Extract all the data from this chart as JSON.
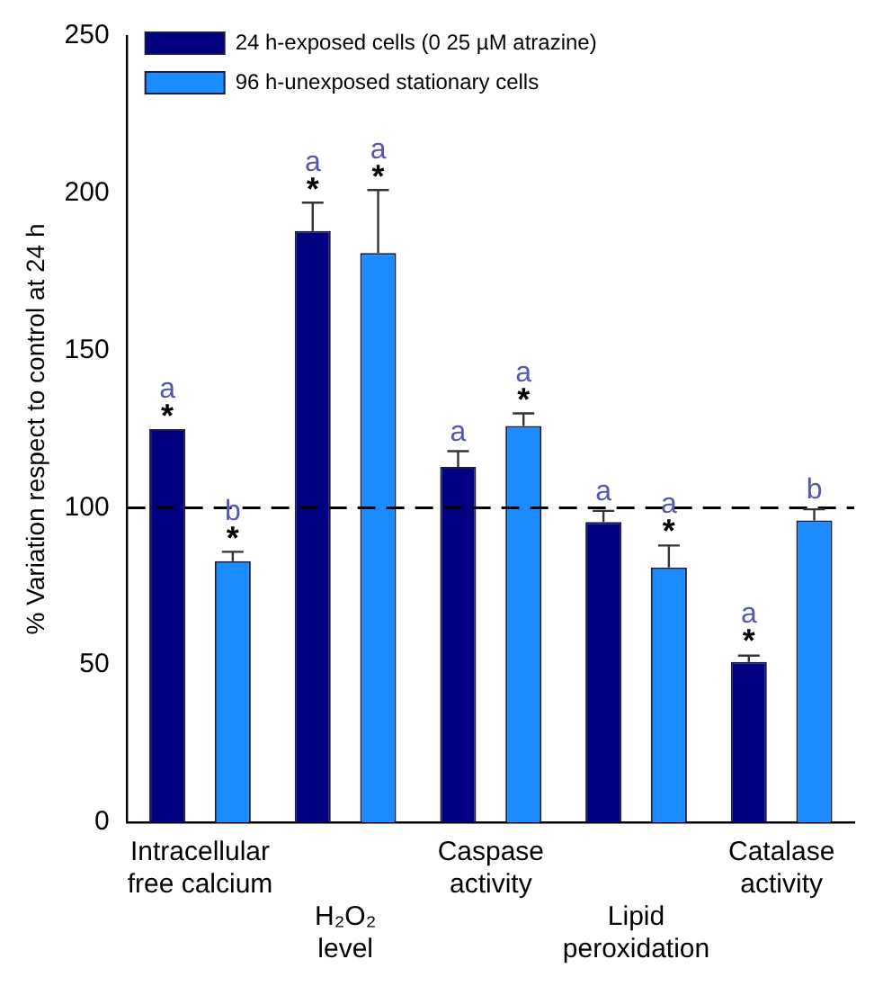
{
  "chart_data": {
    "type": "bar",
    "ylabel": "% Variation respect to control at 24 h",
    "categories": [
      "Intracellular\nfree calcium",
      "H₂O₂\nlevel",
      "Caspase\nactivity",
      "Lipid\nperoxidation",
      "Catalase\nactivity"
    ],
    "series": [
      {
        "name": "24 h-exposed cells (0 25 µM atrazine)",
        "color": "#000080",
        "values": [
          125,
          188,
          113,
          95.5,
          51
        ],
        "errors": [
          null,
          [
            188,
            197
          ],
          [
            113,
            118
          ],
          [
            95.5,
            99
          ],
          [
            51,
            53
          ]
        ],
        "value_labels": [
          "a\n*",
          "a\n*",
          "a",
          "a",
          "a\n*"
        ]
      },
      {
        "name": "96 h-unexposed stationary cells",
        "color": "#1a8cff",
        "values": [
          83,
          181,
          126,
          81,
          96
        ],
        "errors": [
          [
            83,
            86
          ],
          [
            181,
            201
          ],
          [
            126,
            130
          ],
          [
            81,
            88
          ],
          [
            96,
            99.5
          ]
        ],
        "value_labels": [
          "b\n*",
          "a\n*",
          "a\n*",
          "a\n*",
          "b"
        ]
      }
    ],
    "ylim": [
      0,
      250
    ],
    "yticks": [
      0,
      50,
      100,
      150,
      200,
      250
    ],
    "grid": false,
    "legend": "top left",
    "ref_lines": [
      {
        "axis": "y",
        "value": 100,
        "line_style": "dashed",
        "color": "#000000"
      }
    ]
  }
}
